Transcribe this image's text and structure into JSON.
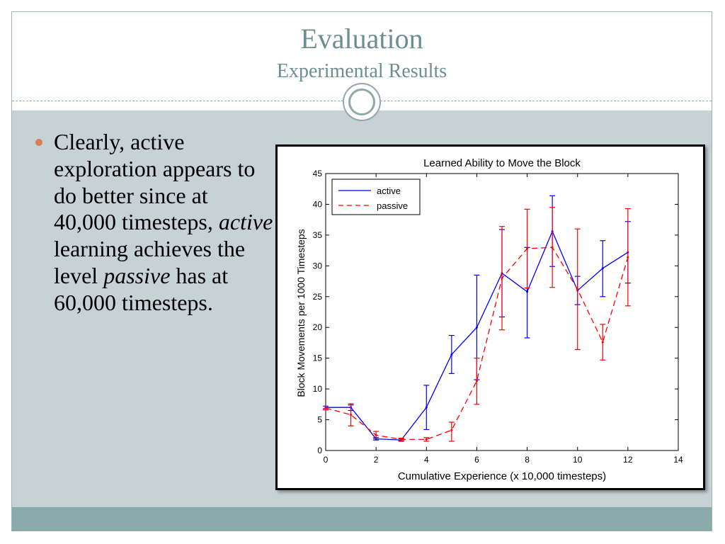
{
  "slide": {
    "title": "Evaluation",
    "subtitle": "Experimental Results",
    "bullet": {
      "part1": "Clearly, active exploration appears to do better since at 40,000 timesteps, ",
      "em1": "active",
      "part2": " learning achieves the level ",
      "em2": "passive",
      "part3": " has at 60,000 timesteps."
    }
  },
  "colors": {
    "header_text": "#6b8e93",
    "content_bg": "#c7d2d7",
    "footer_bg": "#89abab",
    "bullet": "#dc7c55",
    "active": "#0000ff",
    "passive": "#ff0000"
  },
  "chart_data": {
    "type": "line",
    "title": "Learned Ability to Move the Block",
    "xlabel": "Cumulative Experience (x 10,000 timesteps)",
    "ylabel": "Block Movements per 1000 Timesteps",
    "xlim": [
      0,
      14
    ],
    "ylim": [
      0,
      45
    ],
    "xticks": [
      0,
      2,
      4,
      6,
      8,
      10,
      12,
      14
    ],
    "yticks": [
      0,
      5,
      10,
      15,
      20,
      25,
      30,
      35,
      40,
      45
    ],
    "grid": false,
    "legend": "top-left",
    "series": [
      {
        "name": "active",
        "style": "solid",
        "color": "#0000ff",
        "x": [
          0,
          1,
          2,
          3,
          4,
          5,
          6,
          7,
          8,
          9,
          10,
          11,
          12
        ],
        "y": [
          7,
          7,
          1.9,
          1.7,
          7,
          15.6,
          20,
          28.8,
          25.8,
          35.6,
          26,
          29.6,
          32.2
        ],
        "err_low": [
          6.8,
          6.5,
          1.7,
          1.5,
          3.4,
          12.5,
          11.5,
          21.7,
          18.3,
          29.9,
          23.7,
          25,
          27.2
        ],
        "err_high": [
          7.2,
          7.4,
          2.1,
          1.9,
          10.6,
          18.7,
          28.5,
          35.9,
          33,
          41.4,
          28.3,
          34.1,
          37.2
        ]
      },
      {
        "name": "passive",
        "style": "dashed",
        "color": "#ff0000",
        "x": [
          0,
          1,
          2,
          3,
          4,
          5,
          6,
          7,
          8,
          9,
          10,
          11,
          12
        ],
        "y": [
          6.9,
          5.8,
          2.5,
          1.8,
          1.8,
          3.3,
          11.3,
          28,
          32.8,
          33,
          26.2,
          17.6,
          31.4
        ],
        "err_low": [
          6.6,
          4,
          1.9,
          1.6,
          1.5,
          1.5,
          7.5,
          19.6,
          26.4,
          26.5,
          16.4,
          14.7,
          23.5
        ],
        "err_high": [
          7.2,
          7.6,
          3.1,
          2,
          2.1,
          4.6,
          15,
          36.4,
          39.2,
          39.5,
          36,
          20.5,
          39.3
        ]
      }
    ]
  }
}
